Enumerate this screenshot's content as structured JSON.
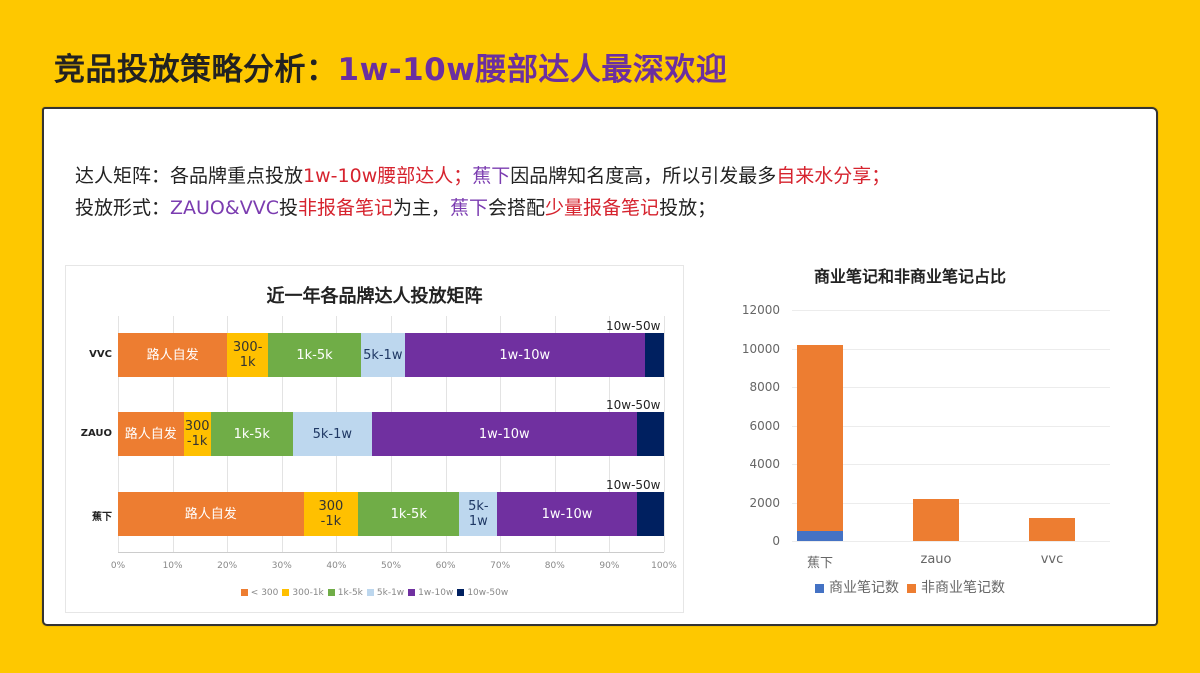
{
  "header": {
    "title_prefix": "竞品投放策略分析：",
    "title_highlight": "1w-10w腰部达人最深欢迎"
  },
  "summary": {
    "line1": {
      "label": "达人矩阵：",
      "t1": "各品牌重点投放",
      "h1": "1w-10w腰部达人；",
      "p1": "蕉下",
      "t2": "因品牌知名度高，所以引发最多",
      "h2": "自来水分享；"
    },
    "line2": {
      "label": "投放形式：",
      "p1": "ZAUO&VVC",
      "t1": "投",
      "h1": "非报备笔记",
      "t2": "为主，",
      "p2": "蕉下",
      "t3": "会搭配",
      "h2": "少量报备笔记",
      "t4": "投放；"
    }
  },
  "colors": {
    "background": "#FEC800",
    "title_highlight": "#6B2FA0",
    "red": "#D6232E",
    "purple": "#7B3CB0",
    "seg_lt300": "#ED7D31",
    "seg_300_1k": "#FFC000",
    "seg_1k_5k": "#70AD47",
    "seg_5k_1w": "#BDD7EE",
    "seg_1w_10w": "#7030A0",
    "seg_10w_50w": "#002060",
    "commercial": "#4472C4",
    "non_commercial": "#ED7D31"
  },
  "chart1": {
    "title": "近一年各品牌达人投放矩阵",
    "x_ticks": [
      "0%",
      "10%",
      "20%",
      "30%",
      "40%",
      "50%",
      "60%",
      "70%",
      "80%",
      "90%",
      "100%"
    ],
    "rows": [
      {
        "brand": "VVC",
        "top_label": "10w-50w",
        "segments": [
          {
            "label": "路人自发",
            "pct": 20
          },
          {
            "label": "300-1k",
            "pct": 7.5
          },
          {
            "label": "1k-5k",
            "pct": 17
          },
          {
            "label": "5k-1w",
            "pct": 8
          },
          {
            "label": "1w-10w",
            "pct": 44
          },
          {
            "label": "",
            "pct": 3.5
          }
        ]
      },
      {
        "brand": "ZAUO",
        "top_label": "10w-50w",
        "segments": [
          {
            "label": "路人自发",
            "pct": 12
          },
          {
            "label": "300-1k",
            "pct": 5
          },
          {
            "label": "1k-5k",
            "pct": 15
          },
          {
            "label": "5k-1w",
            "pct": 14.5
          },
          {
            "label": "1w-10w",
            "pct": 48.5
          },
          {
            "label": "",
            "pct": 5
          }
        ]
      },
      {
        "brand": "蕉下",
        "top_label": "10w-50w",
        "segments": [
          {
            "label": "路人自发",
            "pct": 34
          },
          {
            "label": "300-1k",
            "pct": 10
          },
          {
            "label": "1k-5k",
            "pct": 18.5
          },
          {
            "label": "5k-1w",
            "pct": 7
          },
          {
            "label": "1w-10w",
            "pct": 25.5
          },
          {
            "label": "",
            "pct": 5
          }
        ]
      }
    ],
    "legend": [
      "< 300",
      "300-1k",
      "1k-5k",
      "5k-1w",
      "1w-10w",
      "10w-50w"
    ]
  },
  "chart2": {
    "title": "商业笔记和非商业笔记占比",
    "y_ticks": [
      "12000",
      "10000",
      "8000",
      "6000",
      "4000",
      "2000",
      "0"
    ],
    "categories": [
      "蕉下",
      "zauo",
      "vvc"
    ],
    "legend": [
      "商业笔记数",
      "非商业笔记数"
    ]
  },
  "chart_data": [
    {
      "type": "bar",
      "orientation": "horizontal",
      "stacked": "percent",
      "title": "近一年各品牌达人投放矩阵",
      "categories": [
        "VVC",
        "ZAUO",
        "蕉下"
      ],
      "series": [
        {
          "name": "< 300",
          "values": [
            20,
            12,
            34
          ]
        },
        {
          "name": "300-1k",
          "values": [
            7.5,
            5,
            10
          ]
        },
        {
          "name": "1k-5k",
          "values": [
            17,
            15,
            18.5
          ]
        },
        {
          "name": "5k-1w",
          "values": [
            8,
            14.5,
            7
          ]
        },
        {
          "name": "1w-10w",
          "values": [
            44,
            48.5,
            25.5
          ]
        },
        {
          "name": "10w-50w",
          "values": [
            3.5,
            5,
            5
          ]
        }
      ],
      "xlim": [
        0,
        100
      ],
      "xlabel": "",
      "ylabel": "",
      "grid": true,
      "legend_position": "bottom"
    },
    {
      "type": "bar",
      "stacked": true,
      "title": "商业笔记和非商业笔记占比",
      "categories": [
        "蕉下",
        "zauo",
        "vvc"
      ],
      "series": [
        {
          "name": "商业笔记数",
          "values": [
            520,
            0,
            0
          ]
        },
        {
          "name": "非商业笔记数",
          "values": [
            9680,
            2200,
            1200
          ]
        }
      ],
      "ylim": [
        0,
        12000
      ],
      "xlabel": "",
      "ylabel": "",
      "grid": true,
      "legend_position": "bottom"
    }
  ]
}
